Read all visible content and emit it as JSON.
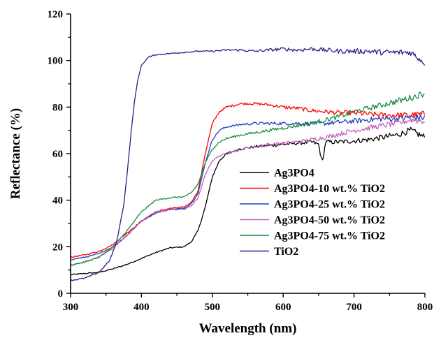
{
  "chart_data": {
    "type": "line",
    "title": "",
    "xlabel": "Wavelength (nm)",
    "ylabel": "Reflectance (%)",
    "xlim": [
      300,
      800
    ],
    "ylim": [
      0,
      120
    ],
    "xticks": [
      300,
      400,
      500,
      600,
      700,
      800
    ],
    "yticks": [
      0,
      20,
      40,
      60,
      80,
      100,
      120
    ],
    "grid": false,
    "legend_position": "lower-right",
    "series": [
      {
        "name": "Ag3PO4",
        "color": "#000000",
        "x": [
          300,
          320,
          340,
          360,
          380,
          400,
          420,
          440,
          460,
          470,
          480,
          490,
          500,
          510,
          520,
          540,
          560,
          580,
          600,
          620,
          640,
          650,
          655,
          660,
          680,
          700,
          720,
          740,
          760,
          780,
          800
        ],
        "y": [
          8,
          8.5,
          9,
          10.5,
          12.5,
          15,
          17.5,
          19.5,
          20,
          22,
          27,
          37,
          50,
          57,
          60,
          62,
          63,
          63.5,
          64,
          64.5,
          65,
          64,
          56,
          65,
          65,
          65.5,
          66,
          67,
          68,
          70,
          67
        ]
      },
      {
        "name": "Ag3PO4-10 wt.% TiO2",
        "color": "#ff0000",
        "x": [
          300,
          320,
          340,
          360,
          380,
          400,
          420,
          440,
          460,
          470,
          480,
          490,
          500,
          510,
          520,
          540,
          560,
          580,
          600,
          620,
          640,
          660,
          680,
          700,
          720,
          740,
          760,
          780,
          800
        ],
        "y": [
          15.5,
          16.5,
          18,
          21,
          26,
          31,
          35,
          36.5,
          37,
          39,
          44,
          60,
          73,
          78,
          80,
          81.5,
          81.5,
          81,
          80,
          79.5,
          78.5,
          78,
          77.5,
          77.5,
          77,
          76.5,
          76.5,
          76.5,
          77
        ]
      },
      {
        "name": "Ag3PO4-25 wt.% TiO2",
        "color": "#1f3fbf",
        "x": [
          300,
          320,
          340,
          360,
          380,
          400,
          420,
          440,
          460,
          470,
          480,
          490,
          500,
          510,
          520,
          540,
          560,
          580,
          600,
          620,
          640,
          660,
          680,
          700,
          720,
          740,
          760,
          780,
          800
        ],
        "y": [
          14.5,
          15.5,
          17,
          20,
          25,
          31,
          34.5,
          36,
          36.5,
          38.5,
          43,
          56,
          66,
          70,
          71.5,
          72.5,
          73,
          73,
          73,
          73,
          73,
          73,
          73.5,
          74,
          74.5,
          75,
          75,
          75.5,
          75.5
        ]
      },
      {
        "name": "Ag3PO4-50 wt.% TiO2",
        "color": "#c060c0",
        "x": [
          300,
          320,
          340,
          360,
          380,
          400,
          420,
          440,
          460,
          470,
          480,
          490,
          500,
          510,
          520,
          540,
          560,
          580,
          600,
          620,
          640,
          660,
          680,
          700,
          720,
          740,
          760,
          780,
          800
        ],
        "y": [
          12,
          13.5,
          15.5,
          19.5,
          25,
          31,
          35,
          36,
          36,
          37.5,
          41,
          51,
          57,
          59,
          60,
          62,
          63,
          64,
          64.5,
          65,
          66,
          67,
          68.5,
          70,
          71,
          72,
          73,
          74.5,
          74
        ]
      },
      {
        "name": "Ag3PO4-75 wt.% TiO2",
        "color": "#1a8a3a",
        "x": [
          300,
          320,
          340,
          360,
          380,
          400,
          420,
          440,
          460,
          470,
          480,
          490,
          500,
          510,
          520,
          540,
          560,
          580,
          600,
          620,
          640,
          660,
          680,
          700,
          720,
          740,
          760,
          780,
          800
        ],
        "y": [
          12,
          13.5,
          15.5,
          20,
          27,
          35,
          40,
          41,
          41.5,
          43,
          47,
          56,
          62,
          65,
          66.5,
          68,
          69,
          70,
          71,
          72,
          73,
          74.5,
          76,
          78,
          79.5,
          81,
          82.5,
          84,
          86
        ]
      },
      {
        "name": "TiO2",
        "color": "#2a1f8a",
        "x": [
          300,
          320,
          340,
          355,
          365,
          375,
          380,
          385,
          390,
          395,
          400,
          410,
          420,
          440,
          460,
          480,
          500,
          520,
          540,
          560,
          580,
          600,
          620,
          640,
          660,
          680,
          700,
          720,
          740,
          760,
          780,
          800
        ],
        "y": [
          5.5,
          6.5,
          9,
          14,
          22,
          38,
          52,
          68,
          82,
          92,
          98,
          101.5,
          102.5,
          103,
          103.5,
          104,
          104,
          104.5,
          104.5,
          104,
          104.5,
          105,
          104.5,
          105,
          104.5,
          104,
          104,
          104,
          103.5,
          103.5,
          103.5,
          99
        ]
      }
    ]
  }
}
